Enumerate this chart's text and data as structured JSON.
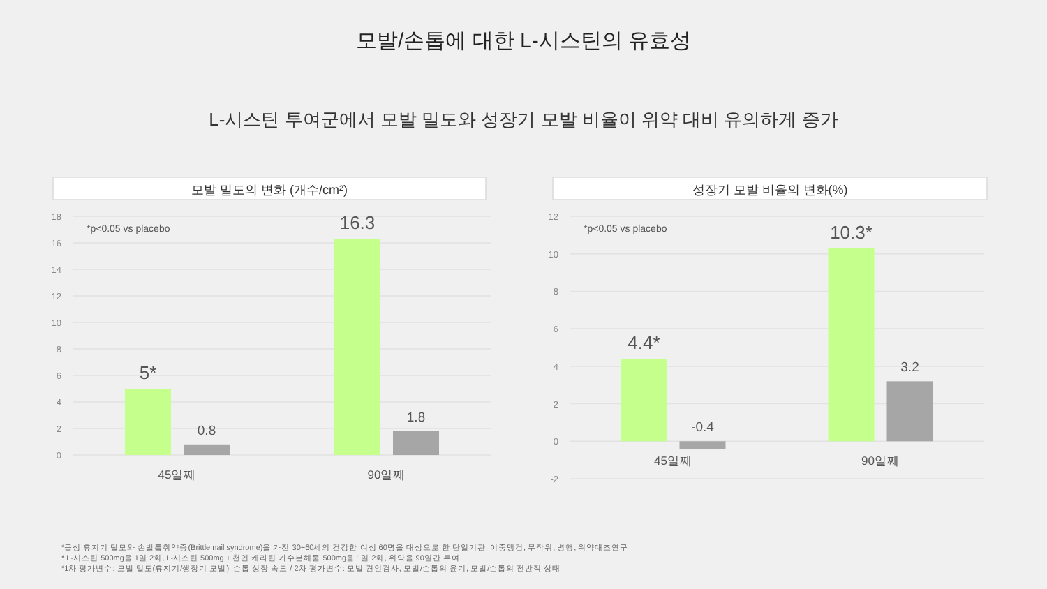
{
  "chart_data": [
    {
      "type": "other",
      "title": "모발/손톱에 대한 L-시스틴의 유효성",
      "subtitle": "L-시스틴 투여군에서 모발 밀도와 성장기 모발 비율이 위약 대비 유의하게 증가",
      "annotations": [
        "*급성 휴지기 탈모와 손발톱취약증(Brittle nail syndrome)을 가진 30~60세의 건강한 여성 60명을 대상으로 한 단일기관, 이중맹검, 무작위, 병행, 위약대조연구",
        "* L-시스틴 500mg을 1일 2회, L-시스틴 500mg + 천연 케라틴 가수분해물 500mg을 1일 2회, 위약을 90일간 투여",
        "*1차 평가변수: 모발 밀도(휴지기/생장기 모발), 손톱 성장 속도 / 2차 평가변수: 모발 견인검사, 모발/손톱의 윤기, 모발/손톱의 전반적 상태"
      ]
    },
    {
      "type": "bar",
      "title": "모발 밀도의 변화 (개수/cm²)",
      "categories": [
        "45일째",
        "90일째"
      ],
      "ylim": [
        0,
        18
      ],
      "yticks": [
        0,
        2,
        4,
        6,
        8,
        10,
        12,
        14,
        16,
        18
      ],
      "grid": "y",
      "annotations": [
        "*p<0.05 vs placebo"
      ],
      "series": [
        {
          "color": "#c5ff8c",
          "values": [
            5,
            16.3
          ],
          "value_labels": [
            "5*",
            "16.3"
          ]
        },
        {
          "color": "#a6a6a6",
          "values": [
            0.8,
            1.8
          ],
          "value_labels": [
            "0.8",
            "1.8"
          ]
        }
      ]
    },
    {
      "type": "bar",
      "title": "성장기 모발 비율의 변화(%)",
      "categories": [
        "45일째",
        "90일째"
      ],
      "ylim": [
        -2,
        12
      ],
      "yticks": [
        -2,
        0,
        2,
        4,
        6,
        8,
        10,
        12
      ],
      "grid": "y",
      "annotations": [
        "*p<0.05 vs placebo"
      ],
      "series": [
        {
          "color": "#c5ff8c",
          "values": [
            4.4,
            10.3
          ],
          "value_labels": [
            "4.4*",
            "10.3*"
          ]
        },
        {
          "color": "#a6a6a6",
          "values": [
            -0.4,
            3.2
          ],
          "value_labels": [
            "-0.4",
            "3.2"
          ]
        }
      ]
    }
  ]
}
